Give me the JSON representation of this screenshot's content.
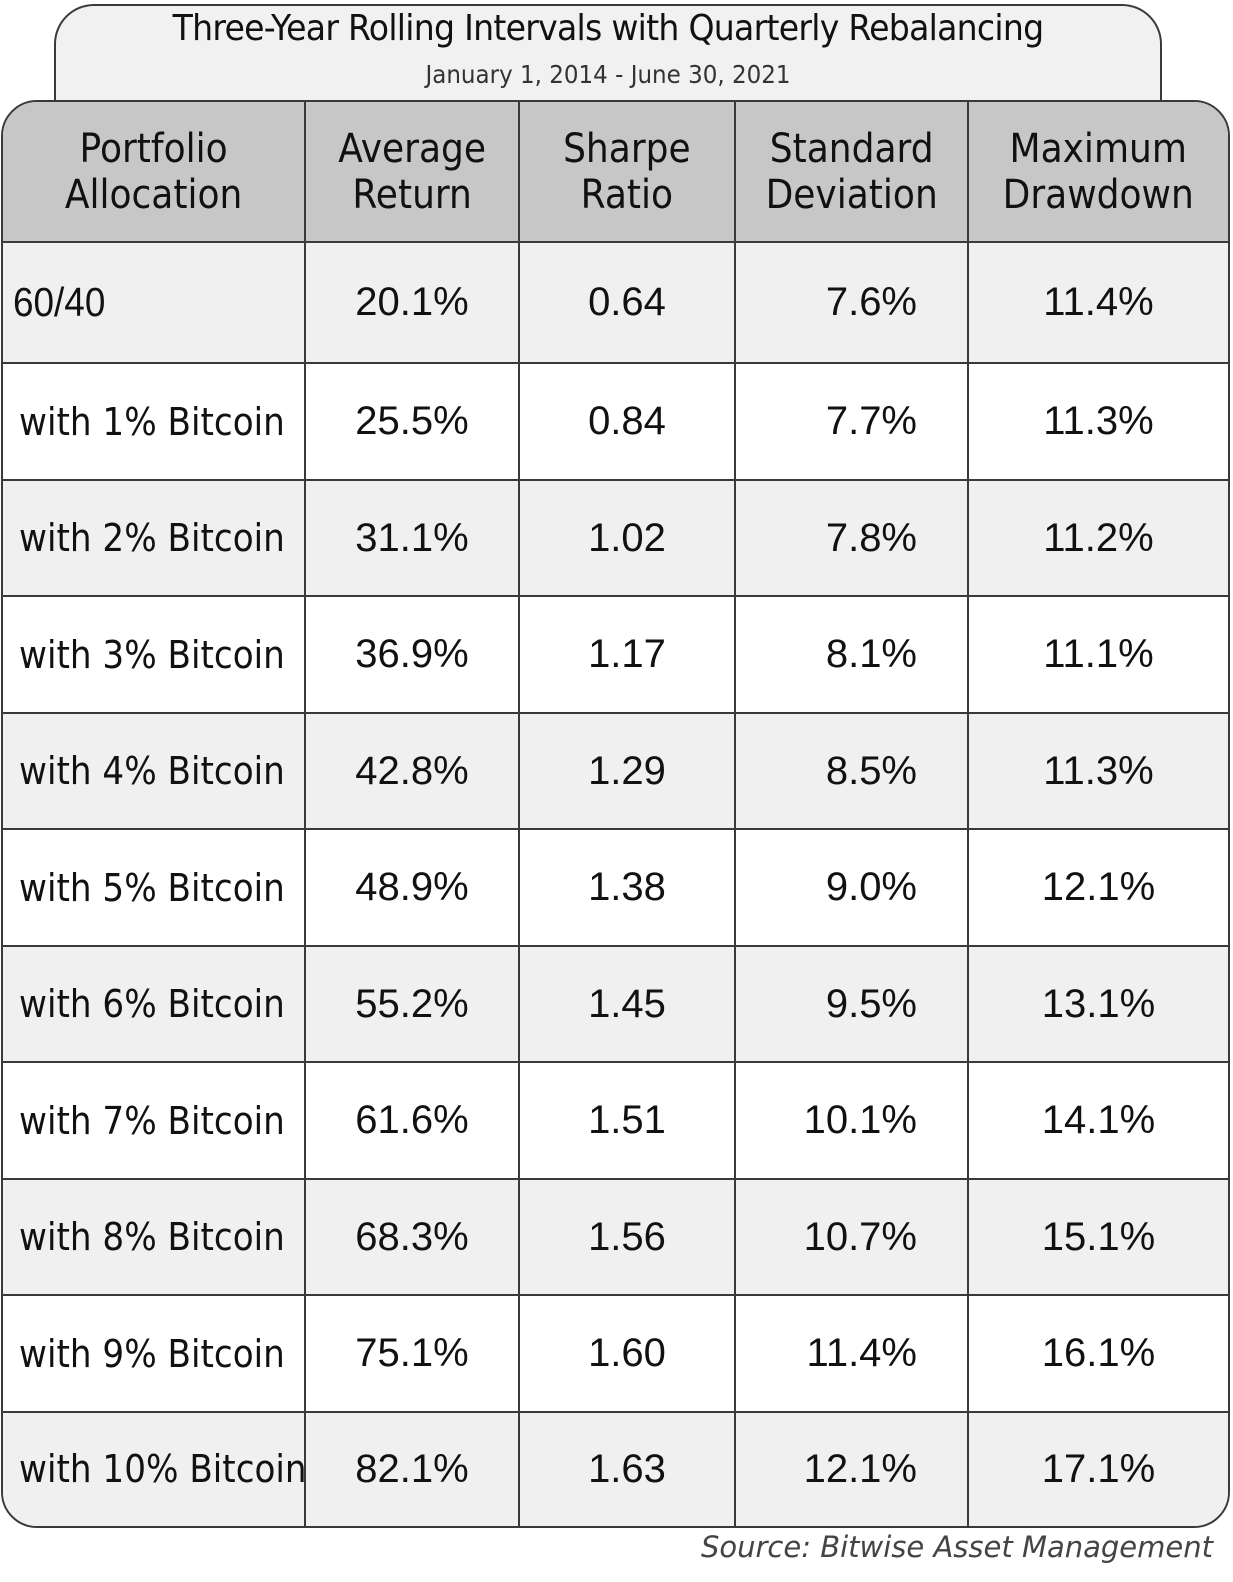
{
  "title": "Three-Year Rolling Intervals with Quarterly Rebalancing",
  "subtitle": "January 1, 2014 - June 30, 2021",
  "source": "Source: Bitwise Asset Management",
  "colors": {
    "header_bg": "#c7c7c7",
    "row_shaded": "#f0f0f0",
    "border": "#3a3a3a"
  },
  "chart_data": {
    "type": "table",
    "title": "Three-Year Rolling Intervals with Quarterly Rebalancing",
    "subtitle": "January 1, 2014 - June 30, 2021",
    "columns": [
      [
        "Portfolio",
        "Allocation"
      ],
      [
        "Average",
        "Return"
      ],
      [
        "Sharpe",
        "Ratio"
      ],
      [
        "Standard",
        "Deviation"
      ],
      [
        "Maximum",
        "Drawdown"
      ]
    ],
    "rows": [
      [
        "60/40",
        "20.1%",
        "0.64",
        "7.6%",
        "11.4%"
      ],
      [
        "with 1% Bitcoin",
        "25.5%",
        "0.84",
        "7.7%",
        "11.3%"
      ],
      [
        "with 2% Bitcoin",
        "31.1%",
        "1.02",
        "7.8%",
        "11.2%"
      ],
      [
        "with 3% Bitcoin",
        "36.9%",
        "1.17",
        "8.1%",
        "11.1%"
      ],
      [
        "with 4% Bitcoin",
        "42.8%",
        "1.29",
        "8.5%",
        "11.3%"
      ],
      [
        "with 5% Bitcoin",
        "48.9%",
        "1.38",
        "9.0%",
        "12.1%"
      ],
      [
        "with 6% Bitcoin",
        "55.2%",
        "1.45",
        "9.5%",
        "13.1%"
      ],
      [
        "with 7% Bitcoin",
        "61.6%",
        "1.51",
        "10.1%",
        "14.1%"
      ],
      [
        "with 8% Bitcoin",
        "68.3%",
        "1.56",
        "10.7%",
        "15.1%"
      ],
      [
        "with 9% Bitcoin",
        "75.1%",
        "1.60",
        "11.4%",
        "16.1%"
      ],
      [
        "with 10% Bitcoin",
        "82.1%",
        "1.63",
        "12.1%",
        "17.1%"
      ]
    ]
  }
}
